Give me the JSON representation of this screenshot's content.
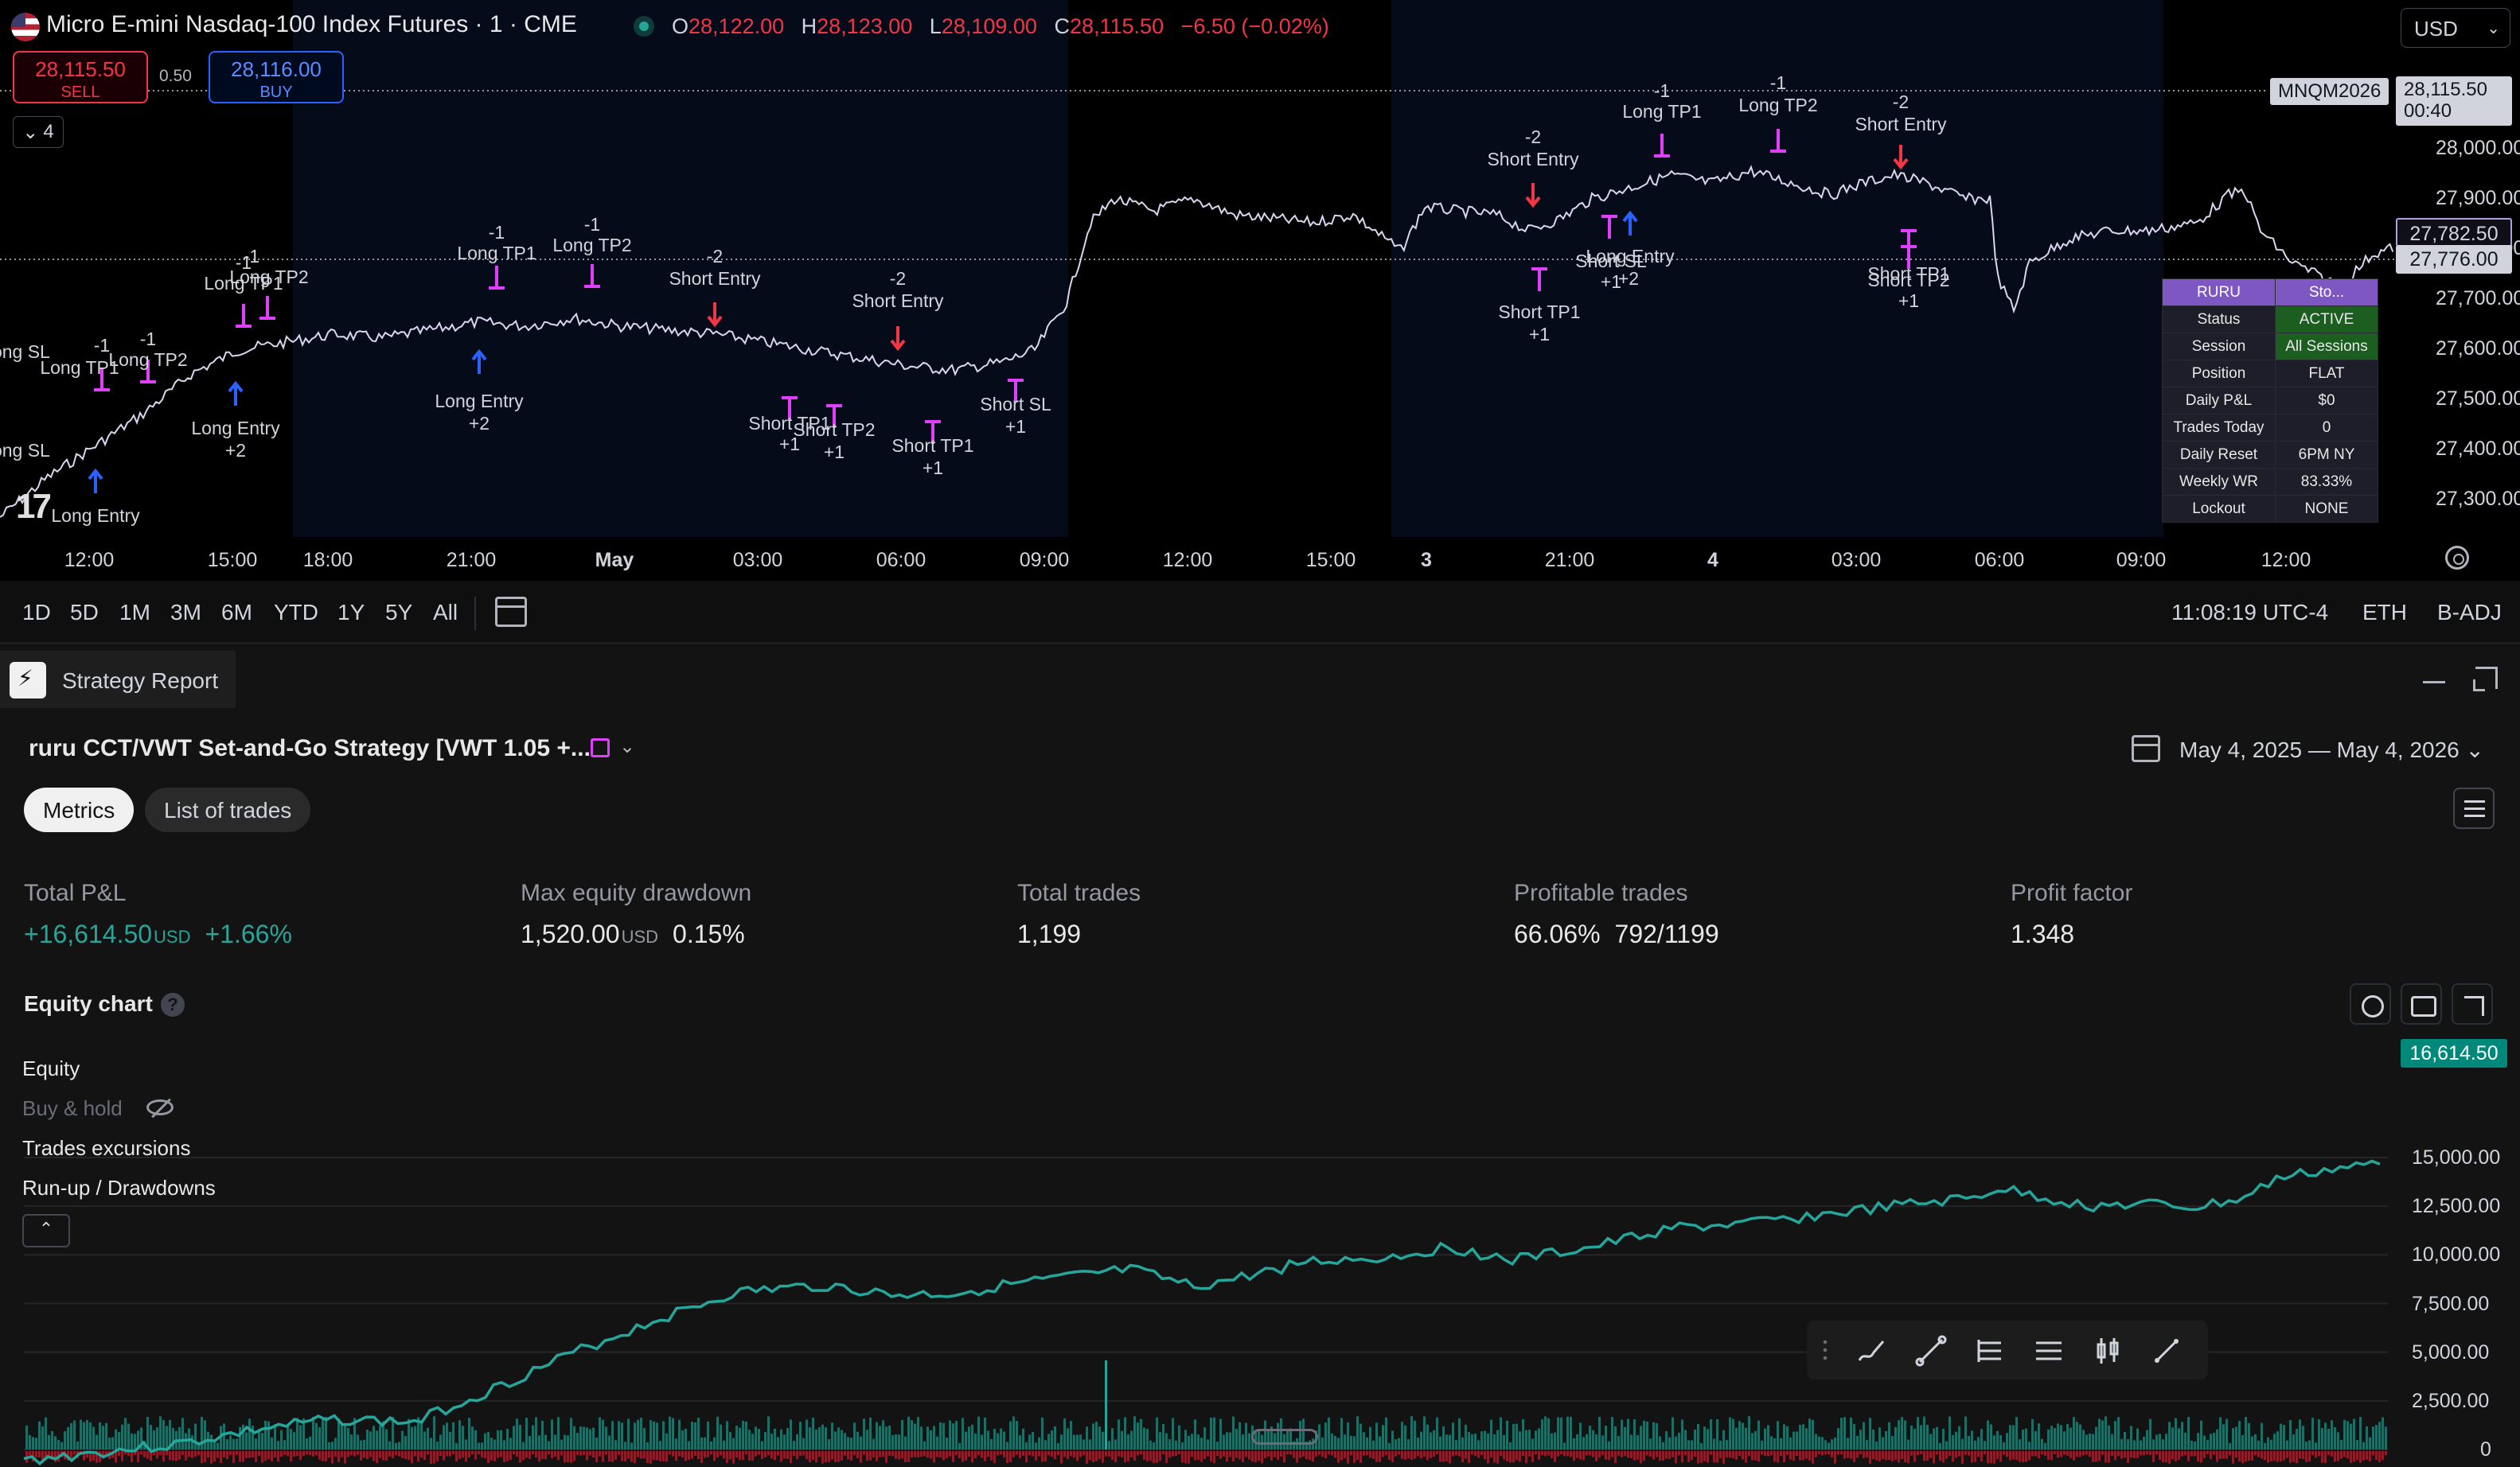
{
  "symbol": {
    "title": "Micro E-mini Nasdaq-100 Index Futures · 1 · CME",
    "ohlc": [
      {
        "key": "O",
        "value": "28,122.00"
      },
      {
        "key": "H",
        "value": "28,123.00"
      },
      {
        "key": "L",
        "value": "28,109.00"
      },
      {
        "key": "C",
        "value": "28,115.50"
      }
    ],
    "change": "−6.50 (−0.02%)",
    "code_tag": "MNQM2026"
  },
  "trade_panel": {
    "sell_price": "28,115.50",
    "sell_label": "SELL",
    "spread": "0.50",
    "buy_price": "28,116.00",
    "buy_label": "BUY"
  },
  "indicator_count": "4",
  "currency": "USD",
  "last_price": {
    "price": "28,115.50",
    "countdown": "00:40"
  },
  "price_axis": [
    "28,000.00",
    "27,900.00",
    "27,800.00",
    "27,700.00",
    "27,600.00",
    "27,500.00",
    "27,400.00",
    "27,300.00"
  ],
  "box_prices": {
    "outline": "27,782.50",
    "filled": "27,776.00"
  },
  "time_axis": [
    "12:00",
    "15:00",
    "18:00",
    "21:00",
    "May",
    "03:00",
    "06:00",
    "09:00",
    "12:00",
    "15:00",
    "3",
    "21:00",
    "4",
    "03:00",
    "06:00",
    "09:00",
    "12:00"
  ],
  "chart_annotations": {
    "long_entry": "Long Entry",
    "long_tp1": "Long TP1",
    "long_tp2": "Long TP2",
    "long_sl": "Long SL",
    "short_entry": "Short Entry",
    "short_tp1": "Short TP1",
    "short_tp2": "Short TP2",
    "short_sl": "Short SL",
    "plus1": "+1",
    "plus2": "+2",
    "minus1": "-1",
    "minus2": "-2"
  },
  "status_table": {
    "header": [
      "RURU",
      "Sto..."
    ],
    "rows": [
      {
        "label": "Status",
        "value": "ACTIVE"
      },
      {
        "label": "Session",
        "value": "All Sessions"
      },
      {
        "label": "Position",
        "value": "FLAT"
      },
      {
        "label": "Daily P&L",
        "value": "$0"
      },
      {
        "label": "Trades Today",
        "value": "0"
      },
      {
        "label": "Daily Reset",
        "value": "6PM NY"
      },
      {
        "label": "Weekly WR",
        "value": "83.33%"
      },
      {
        "label": "Lockout",
        "value": "NONE"
      }
    ]
  },
  "range_bar": {
    "ranges": [
      "1D",
      "5D",
      "1M",
      "3M",
      "6M",
      "YTD",
      "1Y",
      "5Y",
      "All"
    ],
    "clock": "11:08:19 UTC-4",
    "session": "ETH",
    "adjust": "B-ADJ"
  },
  "report": {
    "tab_label": "Strategy Report",
    "strategy_name": "ruru CCT/VWT Set-and-Go Strategy [VWT 1.05 +...",
    "date_range": "May 4, 2025 — May 4, 2026",
    "tabs": [
      "Metrics",
      "List of trades"
    ],
    "metrics": [
      {
        "label": "Total P&L",
        "value": "+16,614.50",
        "unit": "USD",
        "secondary": "+1.66%",
        "positive": true
      },
      {
        "label": "Max equity drawdown",
        "value": "1,520.00",
        "unit": "USD",
        "secondary": "0.15%",
        "positive": false
      },
      {
        "label": "Total trades",
        "value": "1,199",
        "unit": "",
        "secondary": "",
        "positive": false
      },
      {
        "label": "Profitable trades",
        "value": "66.06%",
        "unit": "",
        "secondary": "792/1199",
        "positive": false
      },
      {
        "label": "Profit factor",
        "value": "1.348",
        "unit": "",
        "secondary": "",
        "positive": false
      }
    ],
    "equity_title": "Equity chart",
    "help_glyph": "?",
    "legend": [
      "Equity",
      "Buy & hold",
      "Trades excursions",
      "Run-up / Drawdowns"
    ],
    "equity_axis": [
      "15,000.00",
      "12,500.00",
      "10,000.00",
      "7,500.00",
      "5,000.00",
      "2,500.00",
      "0"
    ],
    "equity_current": "16,614.50"
  },
  "colors": {
    "accent_green": "#26a69a",
    "accent_red": "#f23645",
    "accent_blue": "#2962ff",
    "marker_magenta": "#e040fb",
    "table_header": "#7e57c2"
  },
  "icons": [
    "flag-icon",
    "live-dot-icon",
    "chevron-down-icon",
    "calendar-range-icon",
    "gear-icon",
    "report-logo-icon",
    "minimize-icon",
    "maximize-icon",
    "calendar-icon",
    "menu-icon",
    "help-icon",
    "eye-off-icon",
    "camera-icon",
    "expand-icon",
    "brush-icon",
    "trendline-icon",
    "long-position-icon",
    "short-position-icon",
    "candles-icon",
    "ruler-icon"
  ]
}
